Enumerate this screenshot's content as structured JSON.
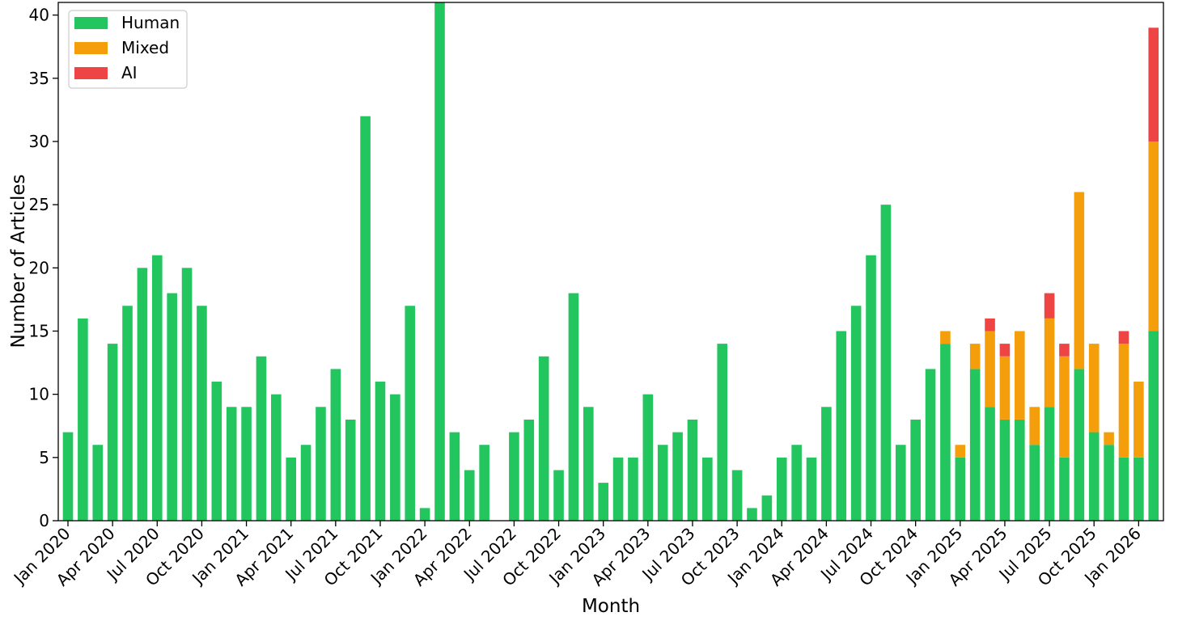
{
  "chart_data": {
    "type": "bar",
    "stacked": true,
    "xlabel": "Month",
    "ylabel": "Number of Articles",
    "ylim": [
      0,
      41
    ],
    "yticks": [
      0,
      5,
      10,
      15,
      20,
      25,
      30,
      35,
      40
    ],
    "grid": false,
    "legend_position": "top-left",
    "x_tick_labels": [
      "Jan 2020",
      "Apr 2020",
      "Jul 2020",
      "Oct 2020",
      "Jan 2021",
      "Apr 2021",
      "Jul 2021",
      "Oct 2021",
      "Jan 2022",
      "Apr 2022",
      "Jul 2022",
      "Oct 2022",
      "Jan 2023",
      "Apr 2023",
      "Jul 2023",
      "Oct 2023",
      "Jan 2024",
      "Apr 2024",
      "Jul 2024",
      "Oct 2024",
      "Jan 2025",
      "Apr 2025",
      "Jul 2025",
      "Oct 2025",
      "Jan 2026"
    ],
    "categories": [
      "2020-01",
      "2020-02",
      "2020-03",
      "2020-04",
      "2020-05",
      "2020-06",
      "2020-07",
      "2020-08",
      "2020-09",
      "2020-10",
      "2020-11",
      "2020-12",
      "2021-01",
      "2021-02",
      "2021-03",
      "2021-04",
      "2021-05",
      "2021-06",
      "2021-07",
      "2021-08",
      "2021-09",
      "2021-10",
      "2021-11",
      "2021-12",
      "2022-01",
      "2022-02",
      "2022-03",
      "2022-04",
      "2022-05",
      "2022-06",
      "2022-07",
      "2022-08",
      "2022-09",
      "2022-10",
      "2022-11",
      "2022-12",
      "2023-01",
      "2023-02",
      "2023-03",
      "2023-04",
      "2023-05",
      "2023-06",
      "2023-07",
      "2023-08",
      "2023-09",
      "2023-10",
      "2023-11",
      "2023-12",
      "2024-01",
      "2024-02",
      "2024-03",
      "2024-04",
      "2024-05",
      "2024-06",
      "2024-07",
      "2024-08",
      "2024-09",
      "2024-10",
      "2024-11",
      "2024-12",
      "2025-01",
      "2025-02",
      "2025-03",
      "2025-04",
      "2025-05",
      "2025-06",
      "2025-07",
      "2025-08",
      "2025-09",
      "2025-10",
      "2025-11",
      "2025-12",
      "2026-01",
      "2026-02"
    ],
    "series": [
      {
        "name": "Human",
        "color": "#22c55e",
        "values": [
          7,
          16,
          6,
          14,
          17,
          20,
          21,
          18,
          20,
          17,
          11,
          9,
          9,
          13,
          10,
          5,
          6,
          9,
          12,
          8,
          32,
          11,
          10,
          17,
          1,
          41,
          7,
          4,
          6,
          0,
          7,
          8,
          13,
          4,
          18,
          9,
          3,
          5,
          5,
          10,
          6,
          7,
          8,
          5,
          14,
          4,
          1,
          2,
          5,
          6,
          5,
          9,
          15,
          17,
          21,
          25,
          6,
          8,
          12,
          14,
          5,
          12,
          9,
          8,
          8,
          6,
          9,
          5,
          12,
          7,
          6,
          5,
          5,
          15
        ]
      },
      {
        "name": "Mixed",
        "color": "#f59e0b",
        "values": [
          0,
          0,
          0,
          0,
          0,
          0,
          0,
          0,
          0,
          0,
          0,
          0,
          0,
          0,
          0,
          0,
          0,
          0,
          0,
          0,
          0,
          0,
          0,
          0,
          0,
          0,
          0,
          0,
          0,
          0,
          0,
          0,
          0,
          0,
          0,
          0,
          0,
          0,
          0,
          0,
          0,
          0,
          0,
          0,
          0,
          0,
          0,
          0,
          0,
          0,
          0,
          0,
          0,
          0,
          0,
          0,
          0,
          0,
          0,
          1,
          1,
          2,
          6,
          5,
          7,
          3,
          7,
          8,
          14,
          7,
          1,
          9,
          6,
          15
        ]
      },
      {
        "name": "AI",
        "color": "#ef4444",
        "values": [
          0,
          0,
          0,
          0,
          0,
          0,
          0,
          0,
          0,
          0,
          0,
          0,
          0,
          0,
          0,
          0,
          0,
          0,
          0,
          0,
          0,
          0,
          0,
          0,
          0,
          0,
          0,
          0,
          0,
          0,
          0,
          0,
          0,
          0,
          0,
          0,
          0,
          0,
          0,
          0,
          0,
          0,
          0,
          0,
          0,
          0,
          0,
          0,
          0,
          0,
          0,
          0,
          0,
          0,
          0,
          0,
          0,
          0,
          0,
          0,
          0,
          0,
          1,
          1,
          0,
          0,
          2,
          1,
          0,
          0,
          0,
          1,
          0,
          9
        ]
      }
    ]
  }
}
